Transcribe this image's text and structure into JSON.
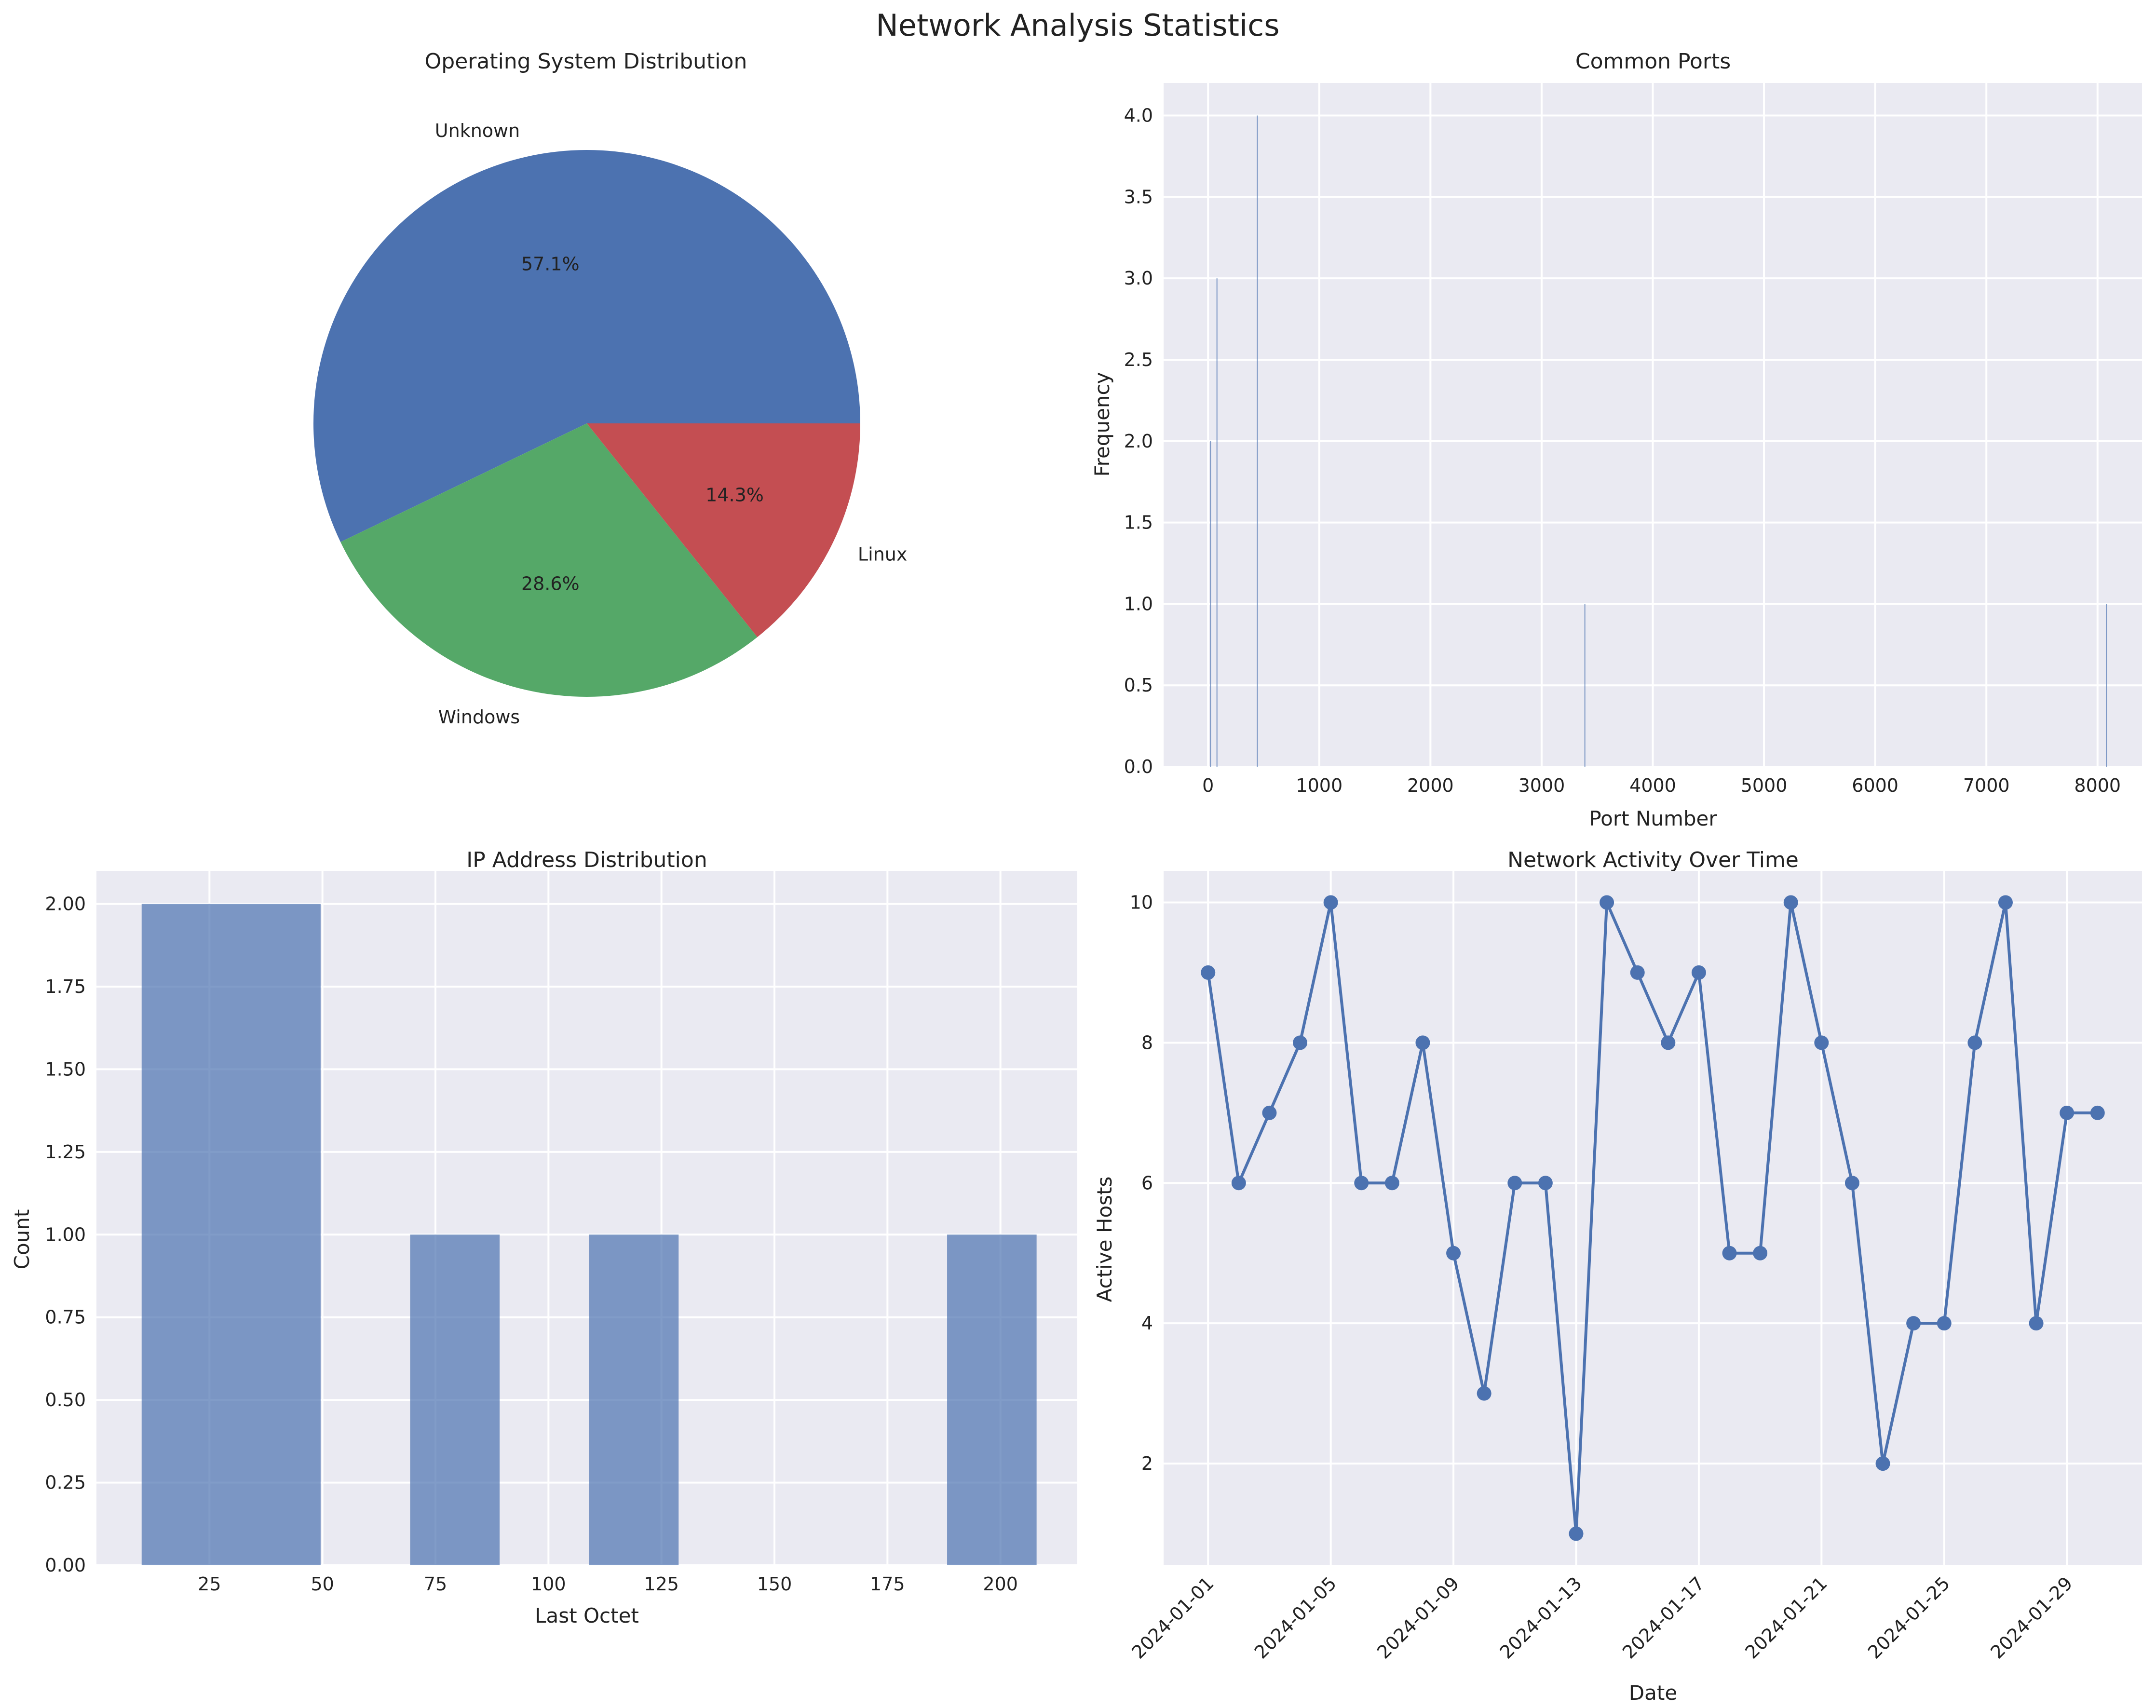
{
  "figure": {
    "title": "Network Analysis Statistics"
  },
  "chart_data": [
    {
      "type": "pie",
      "title": "Operating System Distribution",
      "labels": [
        "Unknown",
        "Windows",
        "Linux"
      ],
      "values": [
        4,
        2,
        1
      ],
      "percent_labels": [
        "57.1%",
        "28.6%",
        "14.3%"
      ],
      "colors": [
        "#4c72b0",
        "#55a868",
        "#c44e52"
      ]
    },
    {
      "type": "bar",
      "title": "Common Ports",
      "xlabel": "Port Number",
      "ylabel": "Frequency",
      "xlim": [
        -400,
        8400
      ],
      "ylim": [
        0,
        4.2
      ],
      "xticks": [
        0,
        1000,
        2000,
        3000,
        4000,
        5000,
        6000,
        7000,
        8000
      ],
      "yticks": [
        "0.0",
        "0.5",
        "1.0",
        "1.5",
        "2.0",
        "2.5",
        "3.0",
        "3.5",
        "4.0"
      ],
      "bars": [
        {
          "x": 80,
          "height": 3
        },
        {
          "x": 443,
          "height": 4
        },
        {
          "x": 22,
          "height": 2
        },
        {
          "x": 3389,
          "height": 1
        },
        {
          "x": 8080,
          "height": 1
        }
      ],
      "color": "#4c72b0",
      "grid": true
    },
    {
      "type": "bar",
      "title": "IP Address Distribution",
      "xlabel": "Last Octet",
      "ylabel": "Count",
      "xlim": [
        0,
        217
      ],
      "ylim": [
        0,
        2.1
      ],
      "xticks": [
        25,
        50,
        75,
        100,
        125,
        150,
        175,
        200
      ],
      "yticks": [
        "0.00",
        "0.25",
        "0.50",
        "0.75",
        "1.00",
        "1.25",
        "1.50",
        "1.75",
        "2.00"
      ],
      "bins": [
        {
          "from": 10,
          "to": 49.6,
          "count": 2
        },
        {
          "from": 69.4,
          "to": 89.2,
          "count": 1
        },
        {
          "from": 109,
          "to": 128.8,
          "count": 1
        },
        {
          "from": 188.2,
          "to": 208,
          "count": 1
        }
      ],
      "color": "#4c72b0",
      "grid": true
    },
    {
      "type": "line",
      "title": "Network Activity Over Time",
      "xlabel": "Date",
      "ylabel": "Active Hosts",
      "ylim": [
        0.55,
        10.45
      ],
      "yticks": [
        2,
        4,
        6,
        8,
        10
      ],
      "xtick_labels": [
        "2024-01-01",
        "2024-01-05",
        "2024-01-09",
        "2024-01-13",
        "2024-01-17",
        "2024-01-21",
        "2024-01-25",
        "2024-01-29"
      ],
      "x": [
        "2024-01-01",
        "2024-01-02",
        "2024-01-03",
        "2024-01-04",
        "2024-01-05",
        "2024-01-06",
        "2024-01-07",
        "2024-01-08",
        "2024-01-09",
        "2024-01-10",
        "2024-01-11",
        "2024-01-12",
        "2024-01-13",
        "2024-01-14",
        "2024-01-15",
        "2024-01-16",
        "2024-01-17",
        "2024-01-18",
        "2024-01-19",
        "2024-01-20",
        "2024-01-21",
        "2024-01-22",
        "2024-01-23",
        "2024-01-24",
        "2024-01-25",
        "2024-01-26",
        "2024-01-27",
        "2024-01-28",
        "2024-01-29",
        "2024-01-30"
      ],
      "values": [
        9,
        6,
        7,
        8,
        10,
        6,
        6,
        8,
        5,
        3,
        6,
        6,
        1,
        10,
        9,
        8,
        9,
        5,
        5,
        10,
        8,
        6,
        2,
        4,
        4,
        8,
        10,
        4,
        7,
        7
      ],
      "color": "#4c72b0",
      "marker": "circle",
      "grid": true
    }
  ],
  "style": {
    "plot_background": "#eaeaf2",
    "grid_color": "#ffffff"
  }
}
